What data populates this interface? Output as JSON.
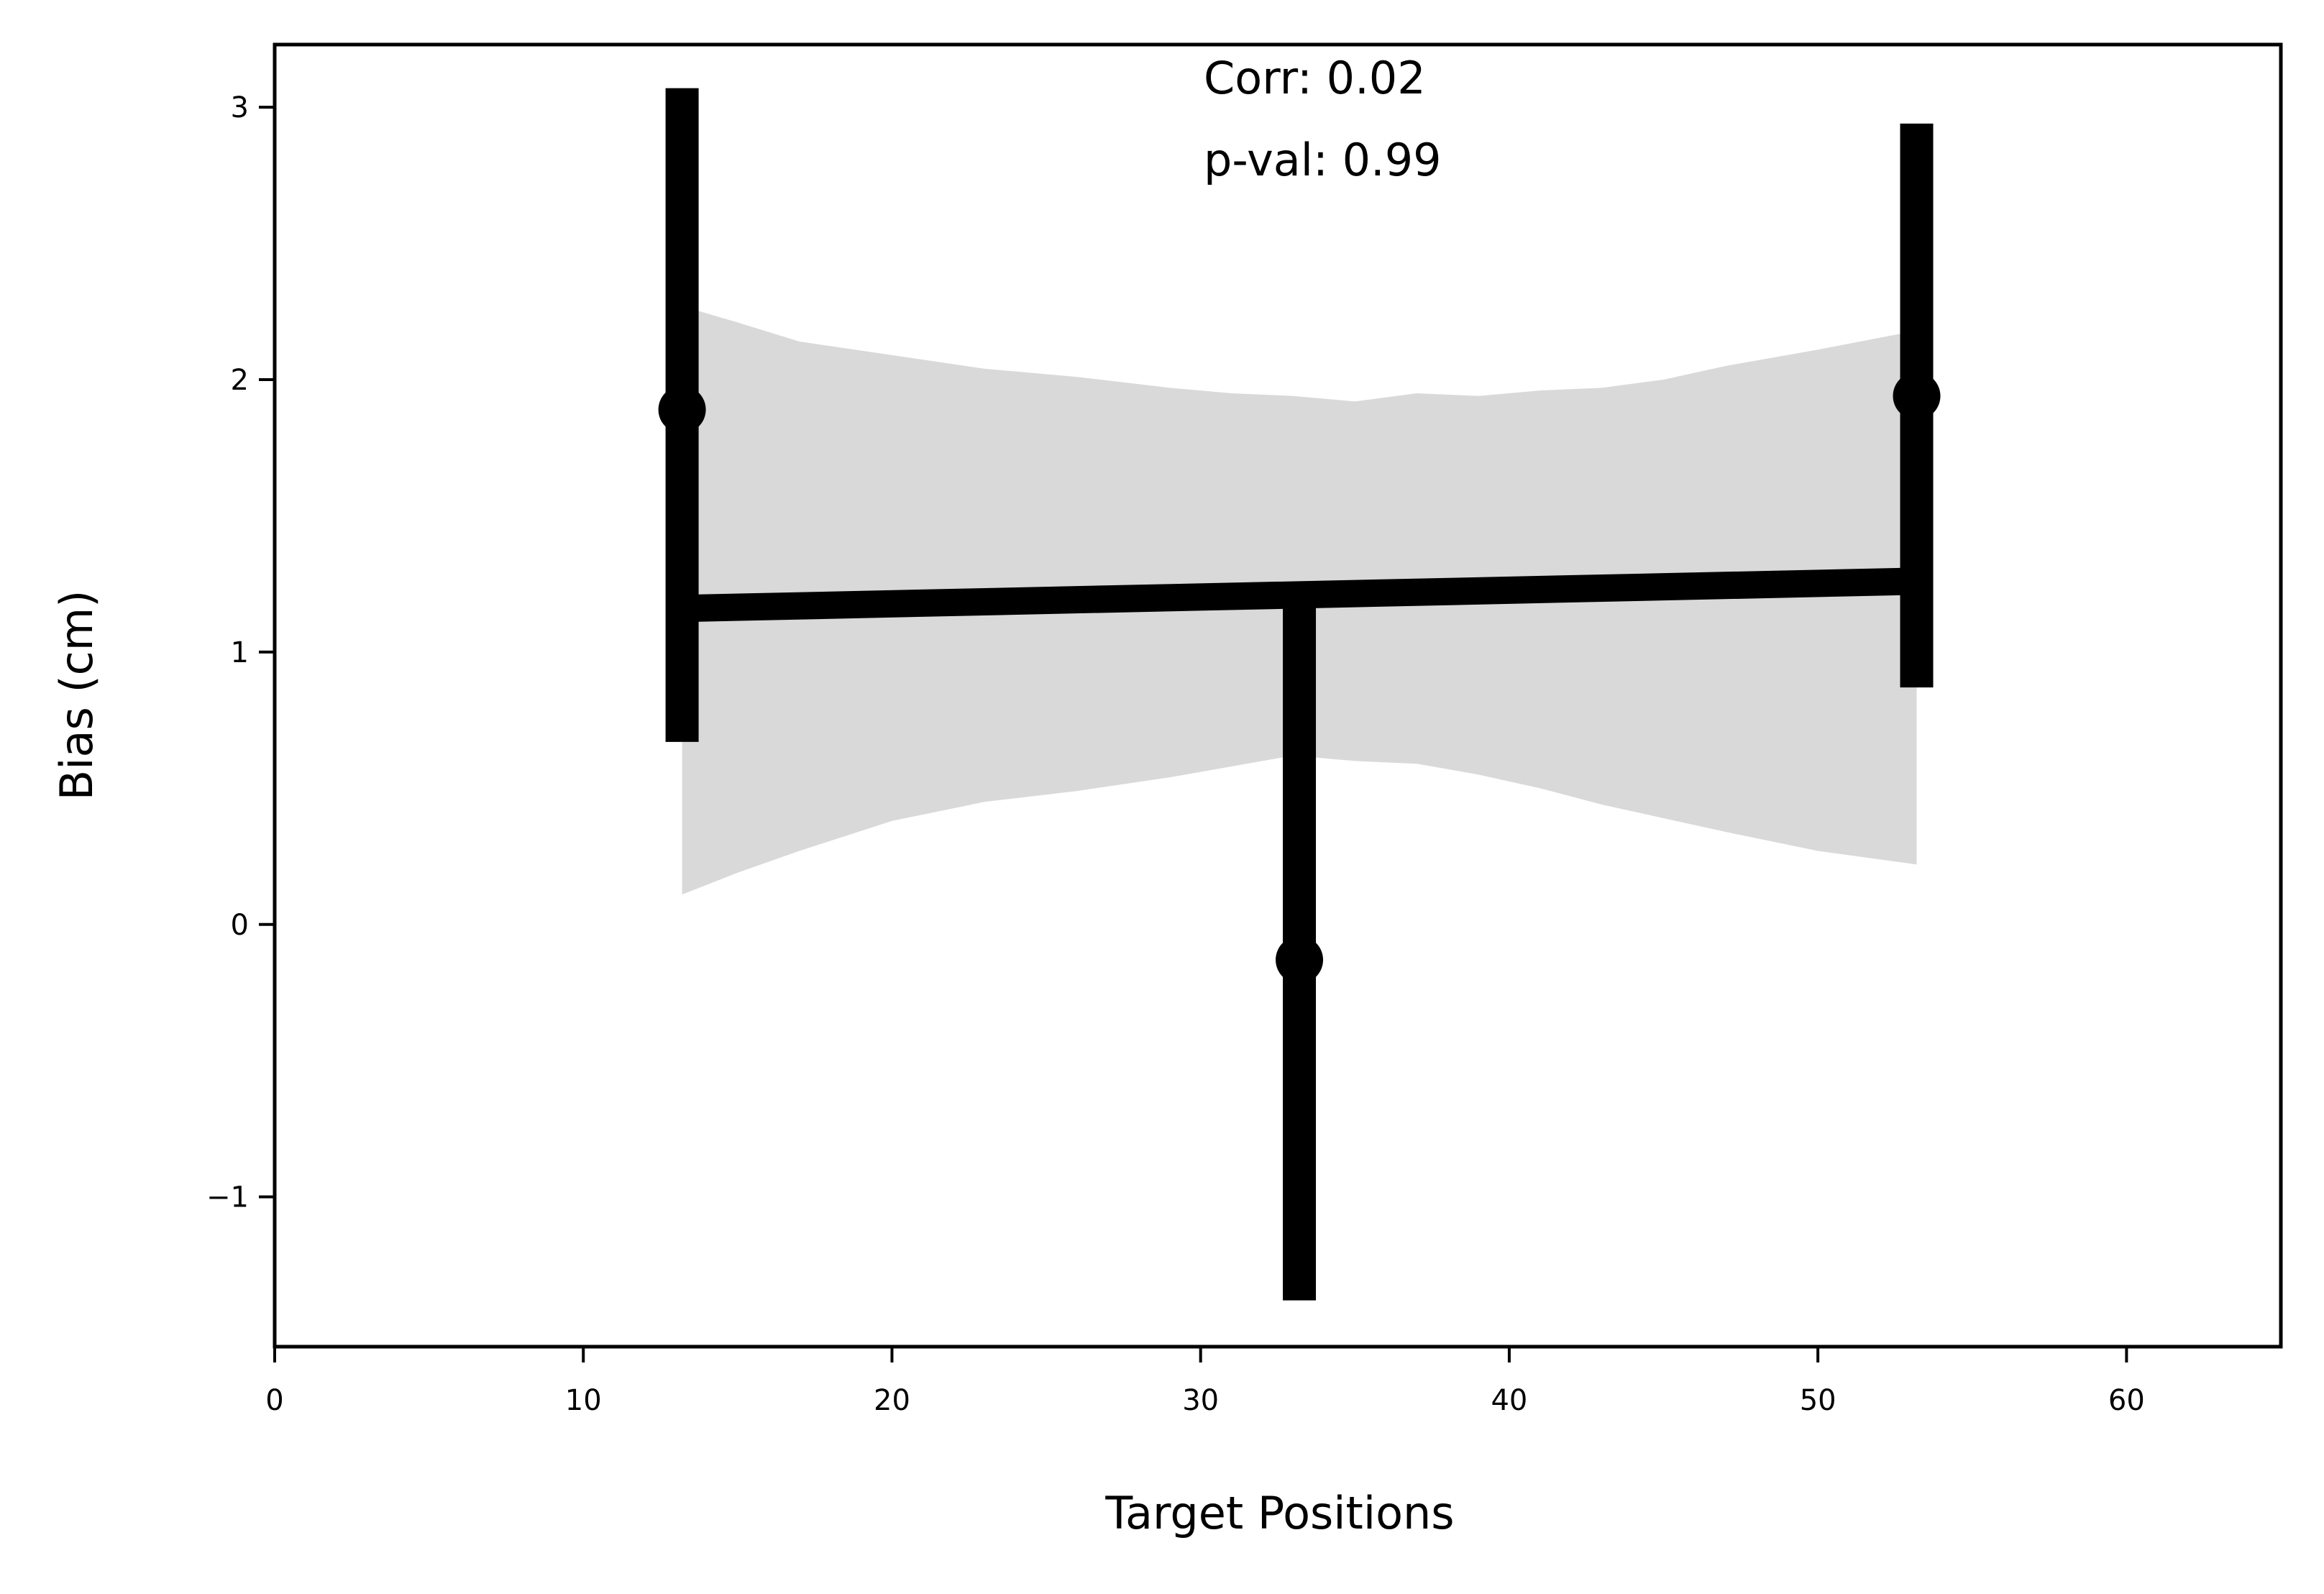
{
  "chart_data": {
    "type": "scatter",
    "xlabel": "Target Positions",
    "ylabel": "Bias (cm)",
    "xlim": [
      0,
      65
    ],
    "ylim": [
      -1.55,
      3.23
    ],
    "xticks": [
      0,
      10,
      20,
      30,
      40,
      50,
      60
    ],
    "yticks": [
      -1,
      0,
      1,
      2,
      3
    ],
    "ytick_labels": [
      "−1",
      "0",
      "1",
      "2",
      "3"
    ],
    "grid": false,
    "annotations": [
      "Corr: 0.02",
      "p-val: 0.99"
    ],
    "points": {
      "x": [
        13.2,
        33.2,
        53.2
      ],
      "y": [
        1.89,
        -0.13,
        1.94
      ],
      "err_low": [
        0.67,
        -1.38,
        0.87
      ],
      "err_high": [
        3.07,
        1.17,
        2.94
      ]
    },
    "regression": {
      "x": [
        13.2,
        53.2
      ],
      "y": [
        1.16,
        1.26
      ]
    },
    "confidence_band": {
      "x": [
        13.2,
        15,
        17,
        20,
        23,
        26,
        29,
        31,
        33,
        35,
        37,
        39,
        41,
        43,
        45,
        47,
        50,
        53.2
      ],
      "upper": [
        2.27,
        2.21,
        2.14,
        2.09,
        2.04,
        2.01,
        1.97,
        1.95,
        1.94,
        1.92,
        1.95,
        1.94,
        1.96,
        1.97,
        2.0,
        2.05,
        2.11,
        2.18
      ],
      "lower": [
        0.11,
        0.19,
        0.27,
        0.38,
        0.45,
        0.49,
        0.54,
        0.58,
        0.62,
        0.6,
        0.59,
        0.55,
        0.5,
        0.44,
        0.39,
        0.34,
        0.27,
        0.22
      ]
    },
    "colors": {
      "marker": "#000000",
      "band": "#d9d9d9",
      "axis": "#000000"
    }
  }
}
